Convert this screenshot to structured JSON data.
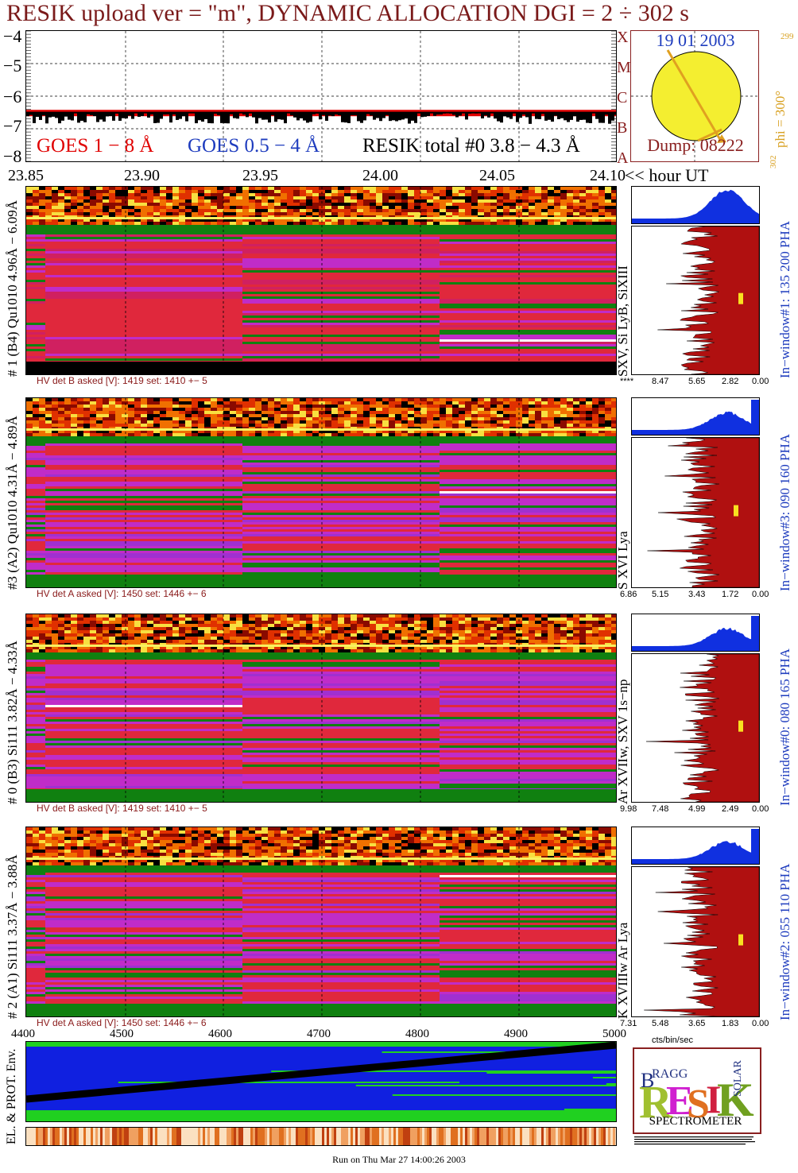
{
  "title": "RESIK upload ver = \"m\", DYNAMIC ALLOCATION  DGI =   2 ÷ 302 s",
  "goes": {
    "yticks": [
      "−4",
      "−5",
      "−6",
      "−7",
      "−8"
    ],
    "legend_goes18": "GOES 1 − 8 Å",
    "legend_goes054": "GOES 0.5 − 4 Å",
    "legend_resik": "RESIK total #0  3.8 − 4.3 Å",
    "class_letters": [
      "X",
      "M",
      "C",
      "B",
      "A"
    ]
  },
  "sun": {
    "date": "19 01 2003",
    "dump": "Dump: 08222",
    "phi": "phi = 300°",
    "phi_sup": "299",
    "phi_low": "302"
  },
  "time_axis": {
    "ticks": [
      "23.85",
      "23.90",
      "23.95",
      "24.00",
      "24.05",
      "24.10"
    ],
    "unit": "<< hour UT"
  },
  "panels": [
    {
      "label": "# 1 (B4) Qu1010 4.96Å − 6.09Å",
      "hv": "HV det B asked [V]:  1419 set:  1410 +−   5",
      "line_label": "SXV,  Si LyB, SiXIII",
      "win_label": "In−window#1:  135 200 PHA",
      "hist_ticks": [
        "****",
        "8.47",
        "5.65",
        "2.82",
        "0.00"
      ]
    },
    {
      "label": "#3 (A2) Qu1010  4.31Å − 4.89Å",
      "hv": "HV det A asked [V]:  1450 set:  1446 +−   6",
      "line_label": "S XVI Lya",
      "win_label": "In−window#3:  090 160 PHA",
      "hist_ticks": [
        "6.86",
        "5.15",
        "3.43",
        "1.72",
        "0.00"
      ]
    },
    {
      "label": "# 0 (B3) Si111  3.82Å − 4.33Å",
      "hv": "HV det B asked [V]:  1419 set:  1410 +−   5",
      "line_label": "Ar XVIIw,  SXV 1s−np",
      "win_label": "In−window#0:  080 165 PHA",
      "hist_ticks": [
        "9.98",
        "7.48",
        "4.99",
        "2.49",
        "0.00"
      ]
    },
    {
      "label": "# 2 (A1) Si111  3.37Å − 3.88Å",
      "hv": "HV det A asked [V]:  1450 set:  1446 +−   6",
      "line_label": "K XVIIIw  Ar Lya",
      "win_label": "In−window#2:  055 110 PHA",
      "hist_ticks": [
        "7.31",
        "5.48",
        "3.65",
        "1.83",
        "0.00"
      ]
    }
  ],
  "channel_axis": {
    "ticks": [
      "4400",
      "4500",
      "4600",
      "4700",
      "4800",
      "4900",
      "5000"
    ]
  },
  "hist_unit": "cts/bin/sec",
  "env_label": "EL. & PROT. Env.",
  "logo": {
    "letters": "RESIK",
    "bragg": "BRAGG",
    "solar": "SOLAR",
    "spectrometer": "SPECTROMETER"
  },
  "footer": "Run on Thu Mar 27 14:00:26 2003",
  "colors": {
    "title": "#7a1a1a",
    "goes18": "#e00000",
    "goes054": "#1e3cbe",
    "resik": "#000000",
    "spectrum_red": "#e0283c",
    "spectrum_magenta": "#c02cc8",
    "spectrum_green": "#108010",
    "hist_fill": "#b01010",
    "hist_top": "#1030e0",
    "sun": "#f4ee30",
    "env_blue": "#1020e0",
    "env_green": "#20d020"
  }
}
